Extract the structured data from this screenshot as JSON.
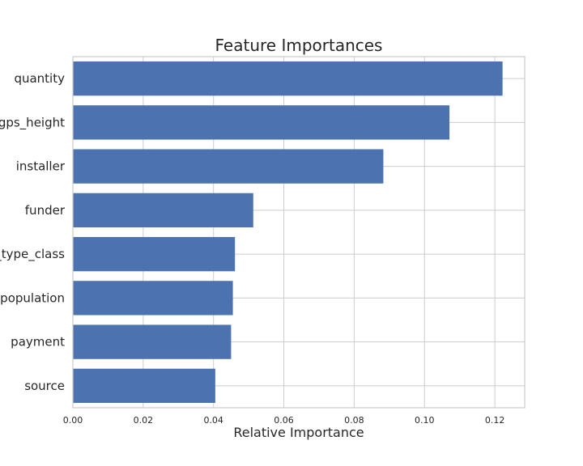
{
  "chart_data": {
    "type": "bar",
    "orientation": "horizontal",
    "title": "Feature Importances",
    "xlabel": "Relative Importance",
    "ylabel": "",
    "categories": [
      "quantity",
      "gps_height",
      "installer",
      "funder",
      "extraction_type_class",
      "population",
      "payment",
      "source"
    ],
    "values": [
      0.1222,
      0.1071,
      0.0883,
      0.0513,
      0.0461,
      0.0455,
      0.045,
      0.0405
    ],
    "xlim": [
      0,
      0.1285
    ],
    "xticks": [
      "0.00",
      "0.02",
      "0.04",
      "0.06",
      "0.08",
      "0.10",
      "0.12"
    ],
    "xtick_values": [
      0,
      0.02,
      0.04,
      0.06,
      0.08,
      0.1,
      0.12
    ],
    "grid": true,
    "bar_color": "#4c72b0",
    "grid_color": "#cccccc"
  }
}
